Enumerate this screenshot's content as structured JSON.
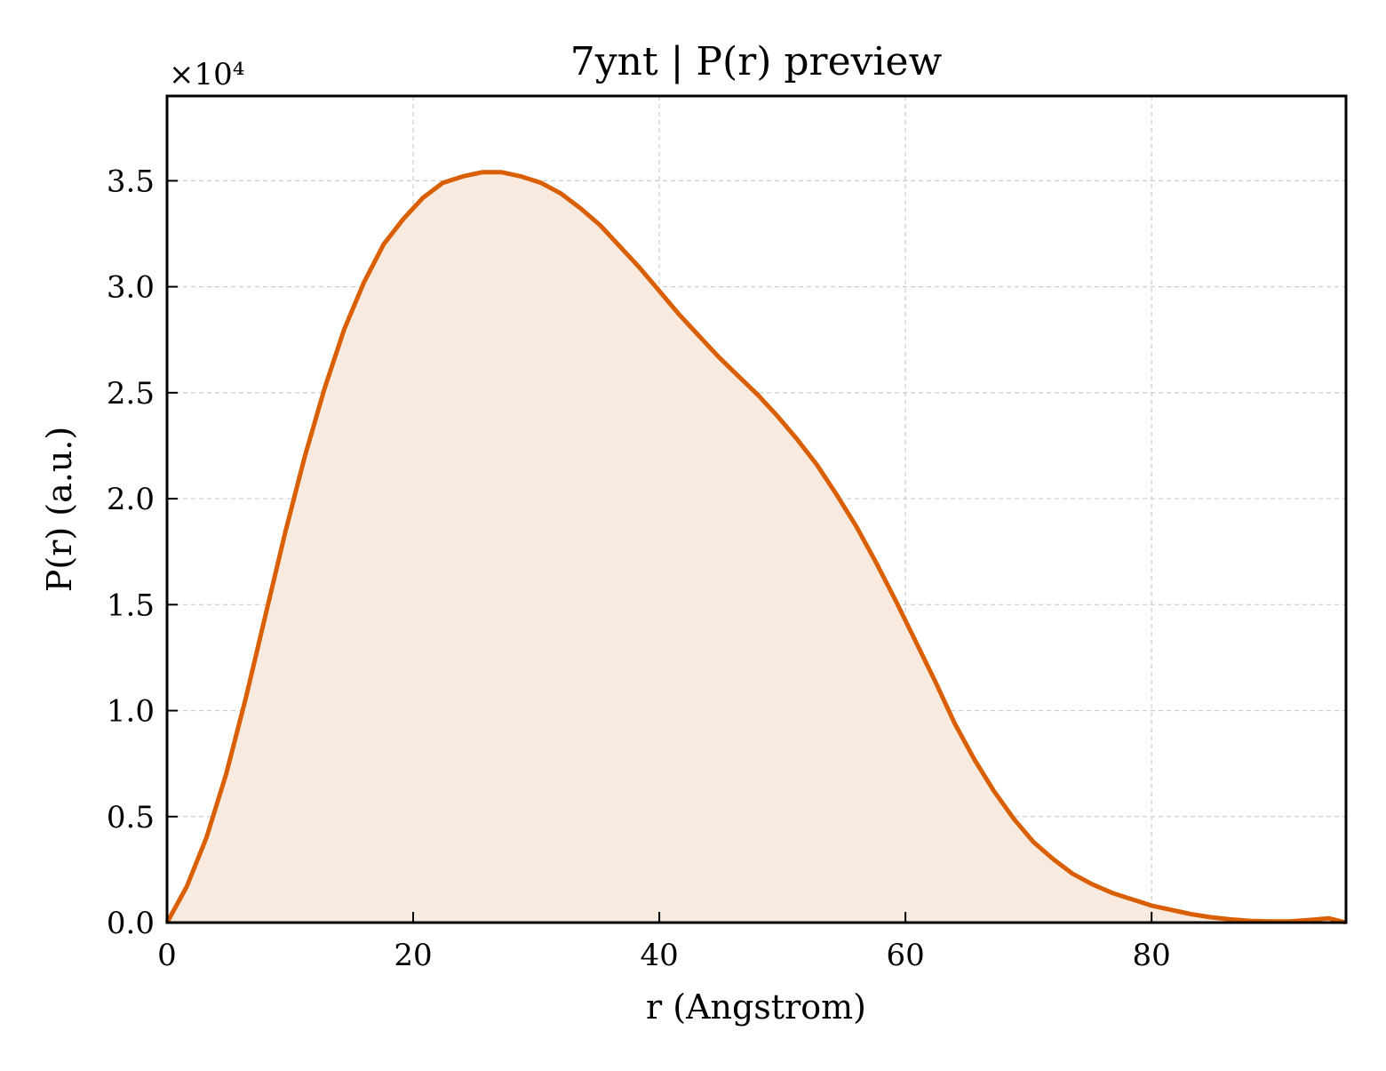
{
  "chart_data": {
    "type": "area",
    "title": "7ynt | P(r) preview",
    "xlabel": "r (Angstrom)",
    "ylabel": "P(r) (a.u.)",
    "y_offset_label": "×10⁴",
    "xlim": [
      0,
      95.8
    ],
    "ylim": [
      0,
      3.9
    ],
    "xticks": [
      0,
      20,
      40,
      60,
      80
    ],
    "xtick_labels": [
      "0",
      "20",
      "40",
      "60",
      "80"
    ],
    "yticks": [
      0,
      0.5,
      1.0,
      1.5,
      2.0,
      2.5,
      3.0,
      3.5
    ],
    "ytick_labels": [
      "0.0",
      "0.5",
      "1.0",
      "1.5",
      "2.0",
      "2.5",
      "3.0",
      "3.5"
    ],
    "grid": true,
    "line_color": "#D95F02",
    "fill_color": "#F8EADF",
    "series": [
      {
        "x": [
          0,
          1.6,
          3.2,
          4.8,
          6.4,
          8.0,
          9.6,
          11.2,
          12.8,
          14.4,
          16.0,
          17.6,
          19.2,
          20.8,
          22.4,
          24.0,
          25.6,
          27.2,
          28.8,
          30.4,
          32.0,
          33.6,
          35.2,
          36.8,
          38.4,
          40.0,
          41.6,
          43.2,
          44.8,
          46.4,
          48.0,
          49.6,
          51.2,
          52.8,
          54.4,
          56.0,
          57.6,
          59.2,
          60.8,
          62.4,
          64.0,
          65.6,
          67.2,
          68.8,
          70.4,
          72.0,
          73.6,
          75.2,
          76.8,
          78.4,
          80.0,
          81.6,
          83.2,
          84.8,
          86.4,
          88.0,
          89.6,
          91.2,
          92.8,
          94.4,
          95.8
        ],
        "y": [
          0.0,
          0.17,
          0.4,
          0.7,
          1.06,
          1.45,
          1.84,
          2.2,
          2.52,
          2.8,
          3.02,
          3.2,
          3.32,
          3.42,
          3.49,
          3.52,
          3.54,
          3.54,
          3.52,
          3.49,
          3.44,
          3.37,
          3.29,
          3.19,
          3.09,
          2.98,
          2.87,
          2.77,
          2.67,
          2.58,
          2.49,
          2.39,
          2.28,
          2.16,
          2.02,
          1.87,
          1.7,
          1.52,
          1.33,
          1.14,
          0.94,
          0.77,
          0.62,
          0.49,
          0.38,
          0.3,
          0.23,
          0.18,
          0.14,
          0.11,
          0.08,
          0.06,
          0.04,
          0.025,
          0.015,
          0.008,
          0.005,
          0.005,
          0.012,
          0.02,
          0.0
        ]
      }
    ]
  }
}
